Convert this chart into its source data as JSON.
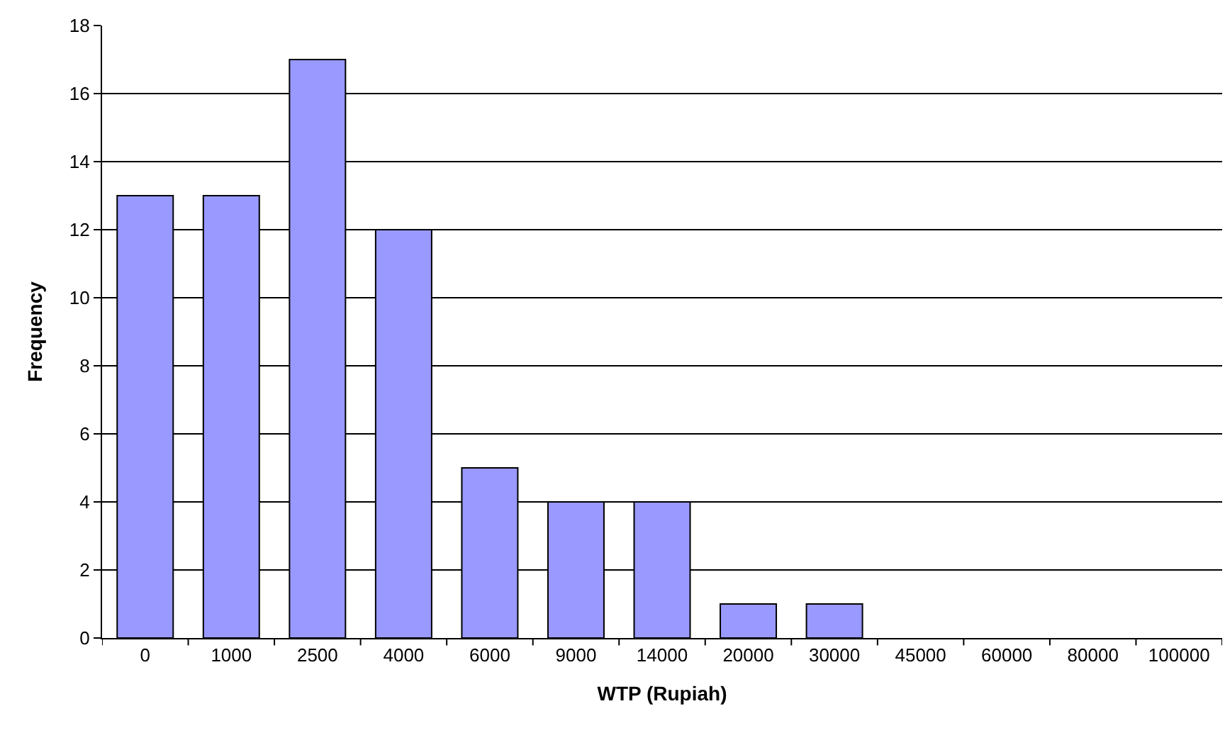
{
  "chart_data": {
    "type": "bar",
    "xlabel": "WTP (Rupiah)",
    "ylabel": "Frequency",
    "categories": [
      "0",
      "1000",
      "2500",
      "4000",
      "6000",
      "9000",
      "14000",
      "20000",
      "30000",
      "45000",
      "60000",
      "80000",
      "100000"
    ],
    "values": [
      13,
      13,
      17,
      12,
      5,
      4,
      4,
      1,
      1,
      0,
      0,
      0,
      0
    ],
    "color": "#9999ff",
    "ylim": [
      0,
      18
    ],
    "yticks": [
      0,
      2,
      4,
      6,
      8,
      10,
      12,
      14,
      16,
      18
    ],
    "grid": "y",
    "legend": false
  }
}
